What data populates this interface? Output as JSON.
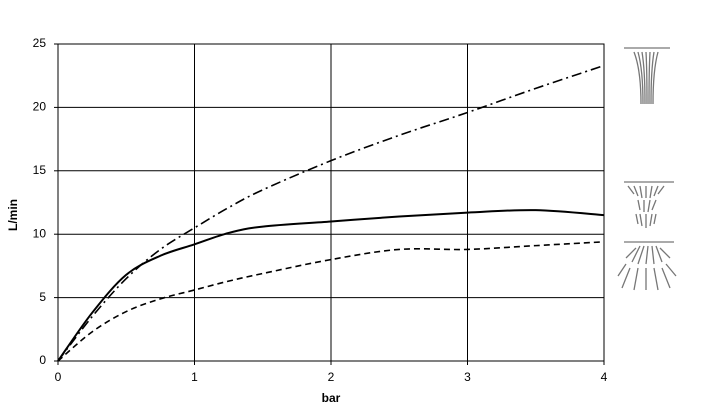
{
  "chart_data": {
    "type": "line",
    "x_label": "bar",
    "y_label": "L/min",
    "x": [
      0,
      0.25,
      0.5,
      0.75,
      1,
      1.25,
      1.5,
      2,
      2.5,
      3,
      3.5,
      4
    ],
    "series": [
      {
        "color": "#000000",
        "dash": "dash-dot",
        "values": [
          0,
          3.5,
          6.5,
          8.8,
          10.5,
          12.1,
          13.5,
          15.8,
          17.8,
          19.6,
          21.5,
          23.3
        ]
      },
      {
        "color": "#000000",
        "dash": "solid",
        "values": [
          0,
          3.8,
          6.8,
          8.3,
          9.2,
          10.1,
          10.6,
          11.0,
          11.4,
          11.7,
          11.9,
          11.5
        ]
      },
      {
        "color": "#000000",
        "dash": "dashed",
        "values": [
          0,
          2.3,
          3.9,
          4.9,
          5.6,
          6.3,
          6.9,
          8.0,
          8.8,
          8.8,
          9.1,
          9.4
        ]
      }
    ],
    "xlim": [
      0,
      4
    ],
    "xticks": [
      0,
      1,
      2,
      3,
      4
    ],
    "ylim": [
      0,
      25
    ],
    "yticks": [
      0,
      5,
      10,
      15,
      20,
      25
    ],
    "grid": true
  }
}
